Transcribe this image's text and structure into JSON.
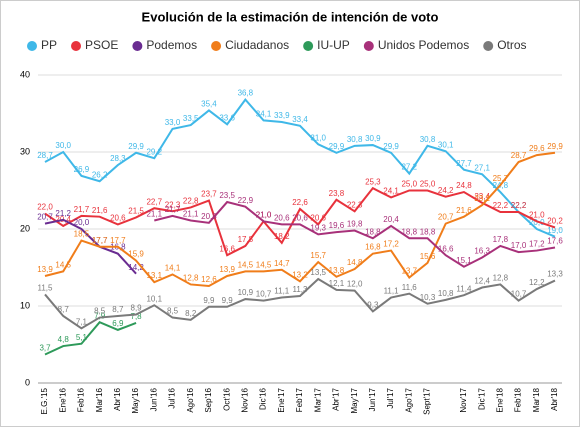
{
  "chart_data": {
    "type": "line",
    "title": "Evolución de la estimación de intención de voto",
    "categories": [
      "E.G.'15",
      "Ene'16",
      "Feb'16",
      "Mar'16",
      "Abr'16",
      "May'16",
      "Jun'16",
      "Jul'16",
      "Ago'16",
      "Sep'16",
      "Oct'16",
      "Nov'16",
      "Dic'16",
      "Ene'17",
      "Feb'17",
      "Mar'17",
      "Abr'17",
      "May'17",
      "Jun'17",
      "Jul'17",
      "Ago'17",
      "Sept'17",
      null,
      "Nov'17",
      "Dic'17",
      "Ene'18",
      "Feb'18",
      "Mar'18",
      "Abr'18"
    ],
    "ylim": [
      0,
      40
    ],
    "yticks": [
      0,
      10,
      20,
      30,
      40
    ],
    "grid": true,
    "series": [
      {
        "name": "PP",
        "color": "#3fb8e8",
        "values": [
          28.7,
          30.0,
          26.9,
          26.2,
          28.3,
          29.9,
          29.2,
          33.0,
          33.5,
          35.4,
          33.6,
          36.8,
          34.1,
          33.9,
          33.4,
          31.0,
          29.9,
          30.8,
          30.9,
          29.9,
          27.2,
          30.8,
          30.1,
          27.7,
          27.1,
          24.8,
          22.2,
          20.0,
          19.0
        ],
        "value_labels": [
          "28,7",
          "30,0",
          "26,9",
          "26,2",
          "28,3",
          "29,9",
          "29,2",
          "33,0",
          "33,5",
          "35,4",
          "33,6",
          "36,8",
          "34,1",
          "33,9",
          "33,4",
          "31,0",
          "29,9",
          "30,8",
          "30,9",
          "29,9",
          "27,2",
          "30,8",
          "30,1",
          "27,7",
          "27,1",
          "24,8",
          "22,2",
          "20,0",
          "19,0"
        ]
      },
      {
        "name": "PSOE",
        "color": "#e8323c",
        "values": [
          22.0,
          20.4,
          21.7,
          21.6,
          20.6,
          21.5,
          22.7,
          22.3,
          22.8,
          23.7,
          16.6,
          17.8,
          21.0,
          18.2,
          22.6,
          20.6,
          23.8,
          22.3,
          25.3,
          24.1,
          25.0,
          25.0,
          24.2,
          24.8,
          23.4,
          22.2,
          22.2,
          21.0,
          20.2
        ],
        "value_labels": [
          "22,0",
          "20,4",
          "21,7",
          "21,6",
          "20,6",
          "21,5",
          "22,7",
          "22,3",
          "22,8",
          "23,7",
          "16,6",
          "17,8",
          "21,0",
          "18,2",
          "22,6",
          "20,6",
          "23,8",
          "22,3",
          "25,3",
          "24,1",
          "25,0",
          "25,0",
          "24,2",
          "24,8",
          "23,4",
          "22,2",
          "22,2",
          "21,0",
          "20,2"
        ]
      },
      {
        "name": "Podemos",
        "color": "#6a2c91",
        "values": [
          20.7,
          21.2,
          20.0,
          17.7,
          16.8,
          14.2,
          null,
          null,
          null,
          null,
          null,
          null,
          null,
          null,
          null,
          null,
          null,
          null,
          null,
          null,
          null,
          null,
          null,
          null,
          null,
          null,
          null,
          null,
          null
        ],
        "value_labels": [
          "20,7",
          "21,2",
          "20,0",
          "17,7",
          "16,8",
          "14,2",
          null,
          null,
          null,
          null,
          null,
          null,
          null,
          null,
          null,
          null,
          null,
          null,
          null,
          null,
          null,
          null,
          null,
          null,
          null,
          null,
          null,
          null,
          null
        ]
      },
      {
        "name": "Ciudadanos",
        "color": "#f07d1a",
        "values": [
          13.9,
          14.5,
          18.5,
          17.7,
          17.7,
          15.9,
          13.1,
          14.1,
          12.8,
          12.6,
          13.9,
          14.5,
          14.5,
          14.7,
          13.2,
          15.7,
          13.8,
          14.8,
          16.8,
          17.2,
          13.7,
          15.6,
          20.7,
          21.6,
          23.1,
          25.7,
          28.7,
          29.6,
          29.9
        ],
        "value_labels": [
          "13,9",
          "14,5",
          "18,5",
          "17,7",
          "17,7",
          "15,9",
          "13,1",
          "14,1",
          "12,8",
          "12,6",
          "13,9",
          "14,5",
          "14,5",
          "14,7",
          "13,2",
          "15,7",
          "13,8",
          "14,8",
          "16,8",
          "17,2",
          "13,7",
          "15,6",
          "20,7",
          "21,6",
          "23,1",
          "25,7",
          "28,7",
          "29,6",
          "29,9"
        ]
      },
      {
        "name": "IU-UP",
        "color": "#2e9a5a",
        "values": [
          3.7,
          4.8,
          5.1,
          7.9,
          6.9,
          7.8,
          null,
          null,
          null,
          null,
          null,
          null,
          null,
          null,
          null,
          null,
          null,
          null,
          null,
          null,
          null,
          null,
          null,
          null,
          null,
          null,
          null,
          null,
          null
        ],
        "value_labels": [
          "3,7",
          "4,8",
          "5,1",
          "7,9",
          "6,9",
          "7,8",
          null,
          null,
          null,
          null,
          null,
          null,
          null,
          null,
          null,
          null,
          null,
          null,
          null,
          null,
          null,
          null,
          null,
          null,
          null,
          null,
          null,
          null,
          null
        ]
      },
      {
        "name": "Unidos Podemos",
        "color": "#a8317a",
        "values": [
          null,
          null,
          null,
          null,
          null,
          null,
          21.1,
          21.7,
          21.1,
          20.8,
          23.5,
          22.9,
          21.0,
          20.6,
          20.6,
          19.3,
          19.6,
          19.8,
          18.8,
          20.4,
          18.8,
          18.8,
          16.6,
          15.1,
          16.3,
          17.8,
          17.0,
          17.2,
          17.6
        ],
        "value_labels": [
          null,
          null,
          null,
          null,
          null,
          null,
          "21,1",
          "21,7",
          "21,1",
          "20,8",
          "23,5",
          "22,9",
          "21,0",
          "20,6",
          "20,6",
          "19,3",
          "19,6",
          "19,8",
          "18,8",
          "20,4",
          "18,8",
          "18,8",
          "16,6",
          "15,1",
          "16,3",
          "17,8",
          "17,0",
          "17,2",
          "17,6"
        ]
      },
      {
        "name": "Otros",
        "color": "#7a7a7a",
        "values": [
          11.5,
          8.7,
          7.1,
          8.5,
          8.7,
          8.9,
          10.1,
          8.5,
          8.2,
          9.9,
          9.9,
          10.9,
          10.7,
          11.1,
          11.3,
          13.5,
          12.1,
          12.0,
          9.3,
          11.1,
          11.6,
          10.3,
          10.8,
          11.4,
          12.4,
          12.8,
          10.7,
          12.2,
          13.3
        ],
        "value_labels": [
          "11,5",
          "8,7",
          "7,1",
          "8,5",
          "8,7",
          "8,9",
          "10,1",
          "8,5",
          "8,2",
          "9,9",
          "9,9",
          "10,9",
          "10,7",
          "11,1",
          "11,3",
          "13,5",
          "12,1",
          "12,0",
          "9,3",
          "11,1",
          "11,6",
          "10,3",
          "10,8",
          "11,4",
          "12,4",
          "12,8",
          "10,7",
          "12,2",
          "13,3"
        ]
      }
    ]
  }
}
